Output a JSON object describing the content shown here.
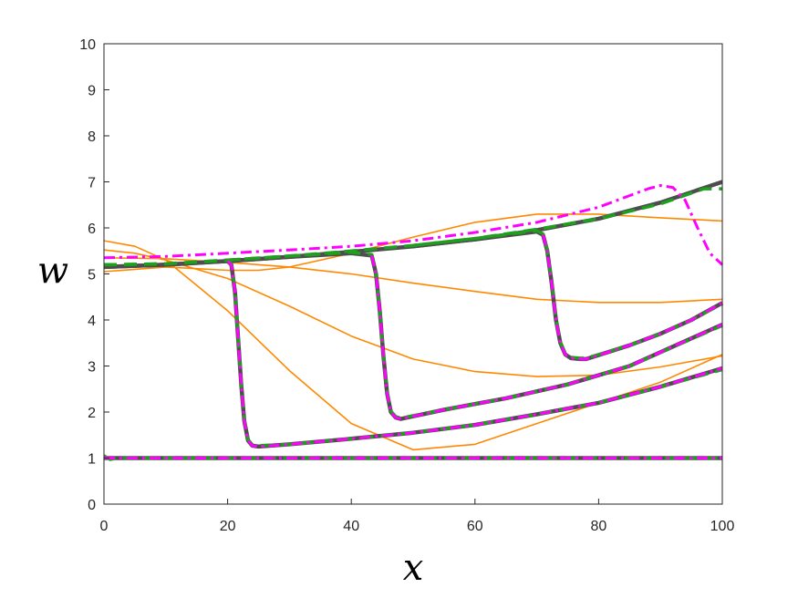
{
  "chart_data": {
    "type": "line",
    "title": "",
    "xlabel": "x",
    "ylabel": "w",
    "xlim": [
      0,
      100
    ],
    "ylim": [
      0,
      10
    ],
    "xticks": [
      0,
      20,
      40,
      60,
      80,
      100
    ],
    "yticks": [
      0,
      1,
      2,
      3,
      4,
      5,
      6,
      7,
      8,
      9,
      10
    ],
    "grid": false,
    "legend": "none",
    "colors": {
      "orange": "#ff8800",
      "dark": "#4d4d4d",
      "green": "#1ea01e",
      "magenta": "#ff00ff",
      "axis": "#262626"
    },
    "series": [
      {
        "style": "orange-thin",
        "x": [
          0,
          5,
          10,
          20,
          30,
          40,
          50,
          60,
          70,
          80,
          90,
          100
        ],
        "y": [
          5.72,
          5.6,
          5.3,
          4.2,
          2.9,
          1.75,
          1.18,
          1.3,
          1.75,
          2.2,
          2.65,
          3.25
        ]
      },
      {
        "style": "orange-thin",
        "x": [
          0,
          5,
          10,
          20,
          30,
          40,
          50,
          60,
          70,
          80,
          90,
          100
        ],
        "y": [
          5.52,
          5.45,
          5.3,
          4.9,
          4.3,
          3.65,
          3.15,
          2.88,
          2.77,
          2.8,
          2.98,
          3.22
        ]
      },
      {
        "style": "orange-thin",
        "x": [
          0,
          10,
          20,
          30,
          40,
          50,
          60,
          70,
          80,
          90,
          100
        ],
        "y": [
          5.35,
          5.33,
          5.25,
          5.15,
          5.0,
          4.8,
          4.62,
          4.45,
          4.38,
          4.38,
          4.45
        ]
      },
      {
        "style": "orange-thin",
        "x": [
          0,
          10,
          20,
          25,
          30,
          40,
          50,
          60,
          70,
          80,
          90,
          100
        ],
        "y": [
          5.05,
          5.15,
          5.08,
          5.08,
          5.15,
          5.45,
          5.8,
          6.12,
          6.3,
          6.3,
          6.22,
          6.15
        ]
      },
      {
        "style": "orange-thin",
        "x": [
          0,
          100
        ],
        "y": [
          1.0,
          1.0
        ]
      },
      {
        "style": "dark-thick",
        "x": [
          0,
          10,
          20,
          30,
          40,
          50,
          60,
          70,
          80,
          90,
          100
        ],
        "y": [
          5.15,
          5.2,
          5.28,
          5.37,
          5.48,
          5.6,
          5.75,
          5.95,
          6.2,
          6.55,
          7.0
        ]
      },
      {
        "style": "dark-thick",
        "x": [
          0,
          100
        ],
        "y": [
          1.0,
          1.0
        ]
      },
      {
        "style": "dark-thick",
        "x": [
          0,
          10,
          20,
          20.6,
          21.2,
          21.7,
          22.2,
          22.7,
          23.3,
          24,
          25,
          30,
          40,
          50,
          60,
          70,
          80,
          90,
          100
        ],
        "y": [
          5.15,
          5.2,
          5.28,
          5.2,
          4.6,
          3.6,
          2.6,
          1.8,
          1.38,
          1.27,
          1.25,
          1.3,
          1.42,
          1.55,
          1.72,
          1.95,
          2.2,
          2.55,
          2.95
        ]
      },
      {
        "style": "dark-thick",
        "x": [
          20,
          30,
          40,
          43.3,
          44,
          44.6,
          45.2,
          45.8,
          46.4,
          47.2,
          48,
          55,
          65,
          75,
          85,
          100
        ],
        "y": [
          5.28,
          5.37,
          5.45,
          5.4,
          5.0,
          4.2,
          3.2,
          2.4,
          2.0,
          1.88,
          1.85,
          2.05,
          2.3,
          2.6,
          3.0,
          3.9
        ]
      },
      {
        "style": "dark-thick",
        "x": [
          50,
          60,
          70,
          71,
          71.7,
          72.4,
          73.1,
          73.8,
          74.6,
          75.5,
          77,
          78,
          85,
          90,
          95,
          100
        ],
        "y": [
          5.6,
          5.75,
          5.92,
          5.85,
          5.5,
          4.8,
          4.0,
          3.5,
          3.25,
          3.17,
          3.15,
          3.15,
          3.45,
          3.7,
          4.0,
          4.37
        ]
      },
      {
        "style": "green-dashed",
        "x": [
          0,
          10,
          20,
          30,
          40,
          50,
          60,
          70,
          80,
          90,
          97,
          100
        ],
        "y": [
          5.2,
          5.22,
          5.3,
          5.39,
          5.5,
          5.62,
          5.77,
          5.97,
          6.2,
          6.52,
          6.85,
          6.85
        ]
      },
      {
        "style": "green-dashed",
        "x": [
          0,
          1,
          2,
          100
        ],
        "y": [
          1.05,
          0.97,
          1.0,
          1.0
        ]
      },
      {
        "style": "green-dashed",
        "x": [
          0,
          10,
          20,
          20.6,
          21.2,
          21.7,
          22.2,
          22.7,
          23.3,
          24,
          25,
          30,
          40,
          50,
          60,
          70,
          80,
          90,
          100
        ],
        "y": [
          5.2,
          5.22,
          5.3,
          5.22,
          4.62,
          3.62,
          2.62,
          1.82,
          1.4,
          1.29,
          1.27,
          1.3,
          1.42,
          1.55,
          1.72,
          1.95,
          2.2,
          2.55,
          2.92
        ]
      },
      {
        "style": "green-dashed",
        "x": [
          20,
          30,
          40,
          43.3,
          44,
          44.6,
          45.2,
          45.8,
          46.4,
          47.2,
          48,
          55,
          65,
          75,
          85,
          100
        ],
        "y": [
          5.3,
          5.39,
          5.47,
          5.42,
          5.02,
          4.22,
          3.22,
          2.42,
          2.02,
          1.9,
          1.87,
          2.05,
          2.3,
          2.6,
          3.0,
          3.88
        ]
      },
      {
        "style": "green-dashed",
        "x": [
          50,
          60,
          70,
          71,
          71.7,
          72.4,
          73.1,
          73.8,
          74.6,
          75.5,
          77,
          78,
          85,
          90,
          95,
          100
        ],
        "y": [
          5.62,
          5.77,
          5.94,
          5.87,
          5.52,
          4.82,
          4.02,
          3.52,
          3.27,
          3.19,
          3.17,
          3.17,
          3.45,
          3.7,
          4.0,
          4.35
        ]
      },
      {
        "style": "magenta-dashdot",
        "x": [
          0,
          10,
          20,
          30,
          40,
          50,
          60,
          70,
          80,
          85,
          88,
          90,
          92,
          94,
          96,
          98,
          100
        ],
        "y": [
          5.35,
          5.38,
          5.45,
          5.52,
          5.6,
          5.72,
          5.9,
          6.12,
          6.45,
          6.7,
          6.85,
          6.92,
          6.88,
          6.6,
          6.0,
          5.45,
          5.2
        ]
      },
      {
        "style": "magenta-dashdot",
        "x": [
          0,
          100
        ],
        "y": [
          1.0,
          1.0
        ]
      },
      {
        "style": "magenta-dashdot",
        "x": [
          20,
          20.6,
          21.2,
          21.7,
          22.2,
          22.7,
          23.3,
          24,
          25,
          30,
          40,
          50,
          60,
          70,
          80,
          90,
          100
        ],
        "y": [
          5.28,
          5.2,
          4.6,
          3.6,
          2.6,
          1.8,
          1.38,
          1.27,
          1.25,
          1.3,
          1.42,
          1.55,
          1.72,
          1.95,
          2.2,
          2.55,
          2.95
        ]
      },
      {
        "style": "magenta-dashdot",
        "x": [
          43.3,
          44,
          44.6,
          45.2,
          45.8,
          46.4,
          47.2,
          48,
          55,
          65,
          75,
          85,
          100
        ],
        "y": [
          5.4,
          5.0,
          4.2,
          3.2,
          2.4,
          2.0,
          1.88,
          1.85,
          2.05,
          2.3,
          2.6,
          3.0,
          3.9
        ]
      },
      {
        "style": "magenta-dashdot",
        "x": [
          71,
          71.7,
          72.4,
          73.1,
          73.8,
          74.6,
          75.5,
          77,
          78,
          85,
          90,
          95,
          100
        ],
        "y": [
          5.85,
          5.5,
          4.8,
          4.0,
          3.5,
          3.25,
          3.17,
          3.15,
          3.15,
          3.45,
          3.7,
          4.0,
          4.37
        ]
      }
    ]
  }
}
